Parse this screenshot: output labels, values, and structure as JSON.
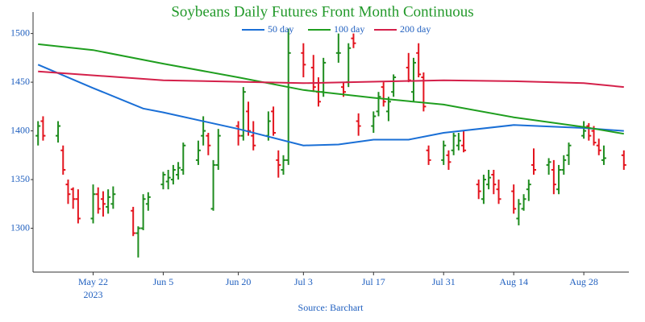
{
  "chart_data": {
    "type": "ohlc",
    "title": "Soybeans Daily Futures Front Month Continuous",
    "source": "Source: Barchart",
    "x": [
      "2023-05-11",
      "2023-05-12",
      "2023-05-15",
      "2023-05-16",
      "2023-05-17",
      "2023-05-18",
      "2023-05-19",
      "2023-05-22",
      "2023-05-23",
      "2023-05-24",
      "2023-05-25",
      "2023-05-26",
      "2023-05-30",
      "2023-05-31",
      "2023-06-01",
      "2023-06-02",
      "2023-06-05",
      "2023-06-06",
      "2023-06-07",
      "2023-06-08",
      "2023-06-09",
      "2023-06-12",
      "2023-06-13",
      "2023-06-14",
      "2023-06-15",
      "2023-06-16",
      "2023-06-20",
      "2023-06-21",
      "2023-06-22",
      "2023-06-23",
      "2023-06-26",
      "2023-06-27",
      "2023-06-28",
      "2023-06-29",
      "2023-06-30",
      "2023-07-03",
      "2023-07-05",
      "2023-07-06",
      "2023-07-07",
      "2023-07-10",
      "2023-07-11",
      "2023-07-12",
      "2023-07-13",
      "2023-07-14",
      "2023-07-17",
      "2023-07-18",
      "2023-07-19",
      "2023-07-20",
      "2023-07-21",
      "2023-07-24",
      "2023-07-25",
      "2023-07-26",
      "2023-07-27",
      "2023-07-28",
      "2023-07-31",
      "2023-08-01",
      "2023-08-02",
      "2023-08-03",
      "2023-08-04",
      "2023-08-07",
      "2023-08-08",
      "2023-08-09",
      "2023-08-10",
      "2023-08-11",
      "2023-08-14",
      "2023-08-15",
      "2023-08-16",
      "2023-08-17",
      "2023-08-18",
      "2023-08-21",
      "2023-08-22",
      "2023-08-23",
      "2023-08-24",
      "2023-08-25",
      "2023-08-28",
      "2023-08-29",
      "2023-08-30",
      "2023-08-31",
      "2023-09-01",
      "2023-09-05"
    ],
    "open": [
      1395,
      1410,
      1395,
      1380,
      1345,
      1340,
      1330,
      1310,
      1335,
      1330,
      1322,
      1325,
      1318,
      1295,
      1300,
      1325,
      1345,
      1348,
      1350,
      1355,
      1360,
      1370,
      1395,
      1395,
      1320,
      1365,
      1405,
      1395,
      1420,
      1395,
      1395,
      1420,
      1370,
      1360,
      1370,
      1480,
      1465,
      1440,
      1440,
      1480,
      1445,
      1450,
      1495,
      1410,
      1405,
      1420,
      1445,
      1420,
      1440,
      1465,
      1440,
      1480,
      1455,
      1380,
      1370,
      1375,
      1380,
      1385,
      1385,
      1345,
      1330,
      1345,
      1355,
      1340,
      1338,
      1310,
      1320,
      1340,
      1365,
      1365,
      1360,
      1340,
      1360,
      1375,
      1395,
      1405,
      1400,
      1385,
      1370,
      1375
    ],
    "high": [
      1410,
      1415,
      1410,
      1385,
      1350,
      1342,
      1340,
      1345,
      1342,
      1338,
      1340,
      1343,
      1322,
      1302,
      1335,
      1337,
      1358,
      1360,
      1365,
      1368,
      1388,
      1390,
      1415,
      1398,
      1370,
      1402,
      1410,
      1445,
      1430,
      1410,
      1420,
      1425,
      1380,
      1375,
      1505,
      1490,
      1478,
      1455,
      1475,
      1500,
      1450,
      1490,
      1500,
      1418,
      1420,
      1440,
      1450,
      1435,
      1458,
      1480,
      1475,
      1490,
      1460,
      1385,
      1390,
      1380,
      1398,
      1398,
      1400,
      1350,
      1355,
      1360,
      1360,
      1350,
      1345,
      1330,
      1335,
      1350,
      1382,
      1372,
      1370,
      1365,
      1375,
      1388,
      1410,
      1408,
      1405,
      1392,
      1385,
      1380
    ],
    "low": [
      1385,
      1390,
      1388,
      1355,
      1325,
      1320,
      1305,
      1305,
      1315,
      1312,
      1315,
      1320,
      1292,
      1270,
      1298,
      1318,
      1340,
      1340,
      1345,
      1350,
      1355,
      1365,
      1385,
      1375,
      1318,
      1360,
      1385,
      1390,
      1395,
      1380,
      1390,
      1395,
      1352,
      1355,
      1365,
      1455,
      1440,
      1425,
      1435,
      1470,
      1435,
      1445,
      1485,
      1395,
      1398,
      1415,
      1425,
      1410,
      1435,
      1450,
      1430,
      1455,
      1420,
      1365,
      1365,
      1360,
      1375,
      1380,
      1378,
      1330,
      1325,
      1340,
      1335,
      1325,
      1315,
      1303,
      1318,
      1328,
      1355,
      1355,
      1335,
      1335,
      1355,
      1365,
      1392,
      1390,
      1385,
      1375,
      1365,
      1360
    ],
    "close": [
      1405,
      1395,
      1405,
      1360,
      1335,
      1330,
      1310,
      1335,
      1320,
      1325,
      1332,
      1335,
      1295,
      1300,
      1330,
      1332,
      1355,
      1352,
      1360,
      1362,
      1385,
      1380,
      1400,
      1385,
      1365,
      1395,
      1395,
      1440,
      1400,
      1385,
      1410,
      1398,
      1365,
      1370,
      1480,
      1468,
      1445,
      1430,
      1470,
      1480,
      1440,
      1485,
      1490,
      1405,
      1415,
      1435,
      1430,
      1430,
      1455,
      1452,
      1470,
      1458,
      1425,
      1370,
      1385,
      1368,
      1395,
      1390,
      1380,
      1338,
      1350,
      1352,
      1345,
      1330,
      1320,
      1325,
      1330,
      1345,
      1360,
      1368,
      1345,
      1360,
      1370,
      1385,
      1400,
      1395,
      1388,
      1380,
      1372,
      1365
    ],
    "up_color": "#1e8c1e",
    "down_color": "#e3141e",
    "overlays": [
      {
        "name": "50 day",
        "color": "#1a6fd6",
        "x": [
          "2023-05-11",
          "2023-05-22",
          "2023-06-01",
          "2023-06-05",
          "2023-06-20",
          "2023-07-03",
          "2023-07-10",
          "2023-07-17",
          "2023-07-24",
          "2023-07-31",
          "2023-08-14",
          "2023-08-28",
          "2023-09-05"
        ],
        "values": [
          1468,
          1444,
          1423,
          1419,
          1402,
          1385,
          1386,
          1391,
          1391,
          1398,
          1406,
          1403,
          1400
        ]
      },
      {
        "name": "100 day",
        "color": "#1f9e1f",
        "x": [
          "2023-05-11",
          "2023-05-22",
          "2023-06-05",
          "2023-06-20",
          "2023-07-03",
          "2023-07-17",
          "2023-07-31",
          "2023-08-14",
          "2023-08-28",
          "2023-09-05"
        ],
        "values": [
          1489,
          1483,
          1469,
          1455,
          1442,
          1434,
          1427,
          1414,
          1404,
          1397
        ]
      },
      {
        "name": "200 day",
        "color": "#d4204a",
        "x": [
          "2023-05-11",
          "2023-06-05",
          "2023-07-03",
          "2023-07-31",
          "2023-08-14",
          "2023-08-28",
          "2023-09-05"
        ],
        "values": [
          1461,
          1452,
          1449,
          1452,
          1451,
          1449,
          1445
        ]
      }
    ],
    "legend": "top",
    "xlim": [
      "2023-05-10",
      "2023-09-06"
    ],
    "xticks": [
      {
        "value": "2023-05-22",
        "label": "May 22"
      },
      {
        "value": "2023-06-05",
        "label": "Jun 5"
      },
      {
        "value": "2023-06-20",
        "label": "Jun 20"
      },
      {
        "value": "2023-07-03",
        "label": "Jul 3"
      },
      {
        "value": "2023-07-17",
        "label": "Jul 17"
      },
      {
        "value": "2023-07-31",
        "label": "Jul 31"
      },
      {
        "value": "2023-08-14",
        "label": "Aug 14"
      },
      {
        "value": "2023-08-28",
        "label": "Aug 28"
      }
    ],
    "x_year_label": "2023",
    "ylim": [
      1255,
      1522
    ],
    "yticks": [
      1300,
      1350,
      1400,
      1450,
      1500
    ]
  }
}
